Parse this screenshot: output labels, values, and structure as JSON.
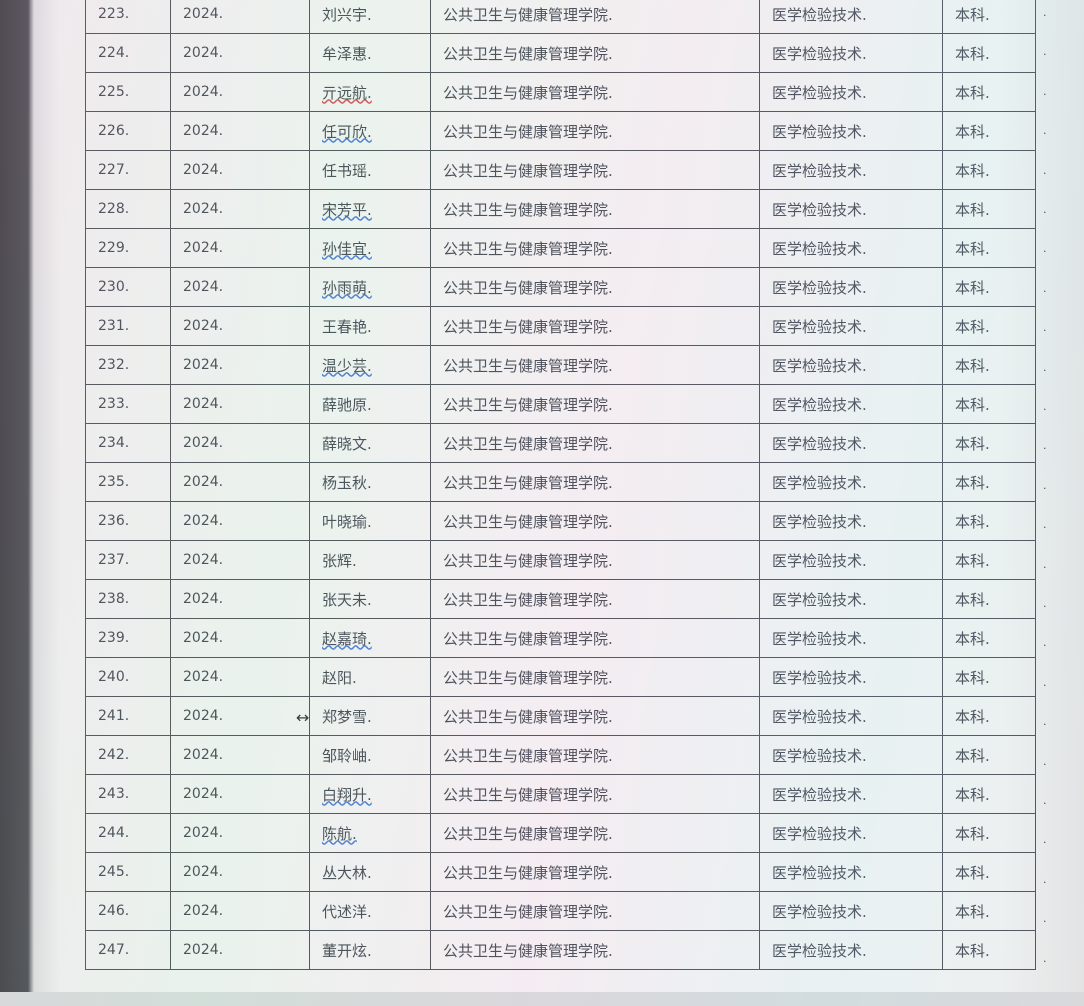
{
  "rows": [
    [
      "223.",
      "2024.",
      "刘兴宇.",
      "公共卫生与健康管理学院.",
      "医学检验技术.",
      "本科."
    ],
    [
      "224.",
      "2024.",
      "牟泽惠.",
      "公共卫生与健康管理学院.",
      "医学检验技术.",
      "本科."
    ],
    [
      "225.",
      "2024.",
      "亓远航.",
      "公共卫生与健康管理学院.",
      "医学检验技术.",
      "本科."
    ],
    [
      "226.",
      "2024.",
      "任可欣.",
      "公共卫生与健康管理学院.",
      "医学检验技术.",
      "本科."
    ],
    [
      "227.",
      "2024.",
      "任书瑶.",
      "公共卫生与健康管理学院.",
      "医学检验技术.",
      "本科."
    ],
    [
      "228.",
      "2024.",
      "宋芳平.",
      "公共卫生与健康管理学院.",
      "医学检验技术.",
      "本科."
    ],
    [
      "229.",
      "2024.",
      "孙佳宜.",
      "公共卫生与健康管理学院.",
      "医学检验技术.",
      "本科."
    ],
    [
      "230.",
      "2024.",
      "孙雨萌.",
      "公共卫生与健康管理学院.",
      "医学检验技术.",
      "本科."
    ],
    [
      "231.",
      "2024.",
      "王春艳.",
      "公共卫生与健康管理学院.",
      "医学检验技术.",
      "本科."
    ],
    [
      "232.",
      "2024.",
      "温少芸.",
      "公共卫生与健康管理学院.",
      "医学检验技术.",
      "本科."
    ],
    [
      "233.",
      "2024.",
      "薛驰原.",
      "公共卫生与健康管理学院.",
      "医学检验技术.",
      "本科."
    ],
    [
      "234.",
      "2024.",
      "薛晓文.",
      "公共卫生与健康管理学院.",
      "医学检验技术.",
      "本科."
    ],
    [
      "235.",
      "2024.",
      "杨玉秋.",
      "公共卫生与健康管理学院.",
      "医学检验技术.",
      "本科."
    ],
    [
      "236.",
      "2024.",
      "叶晓瑜.",
      "公共卫生与健康管理学院.",
      "医学检验技术.",
      "本科."
    ],
    [
      "237.",
      "2024.",
      "张辉.",
      "公共卫生与健康管理学院.",
      "医学检验技术.",
      "本科."
    ],
    [
      "238.",
      "2024.",
      "张天未.",
      "公共卫生与健康管理学院.",
      "医学检验技术.",
      "本科."
    ],
    [
      "239.",
      "2024.",
      "赵嘉琦.",
      "公共卫生与健康管理学院.",
      "医学检验技术.",
      "本科."
    ],
    [
      "240.",
      "2024.",
      "赵阳.",
      "公共卫生与健康管理学院.",
      "医学检验技术.",
      "本科."
    ],
    [
      "241.",
      "2024.",
      "郑梦雪.",
      "公共卫生与健康管理学院.",
      "医学检验技术.",
      "本科."
    ],
    [
      "242.",
      "2024.",
      "邹聆岫.",
      "公共卫生与健康管理学院.",
      "医学检验技术.",
      "本科."
    ],
    [
      "243.",
      "2024.",
      "白翔升.",
      "公共卫生与健康管理学院.",
      "医学检验技术.",
      "本科."
    ],
    [
      "244.",
      "2024.",
      "陈航.",
      "公共卫生与健康管理学院.",
      "医学检验技术.",
      "本科."
    ],
    [
      "245.",
      "2024.",
      "丛大林.",
      "公共卫生与健康管理学院.",
      "医学检验技术.",
      "本科."
    ],
    [
      "246.",
      "2024.",
      "代述洋.",
      "公共卫生与健康管理学院.",
      "医学检验技术.",
      "本科."
    ],
    [
      "247.",
      "2024.",
      "董开炫.",
      "公共卫生与健康管理学院.",
      "医学检验技术.",
      "本科."
    ]
  ],
  "row_end_mark": ".",
  "spellcheck_underlined_names": [
    "亓远航.",
    "任可欣.",
    "宋芳平.",
    "孙佳宜.",
    "孙雨萌.",
    "温少芸.",
    "赵嘉琦.",
    "白翔升.",
    "陈航."
  ],
  "colors": {
    "text": "#333a44",
    "border": "#3c4148",
    "spell_blue": "#3a6fd0",
    "spell_red": "#d04040"
  }
}
